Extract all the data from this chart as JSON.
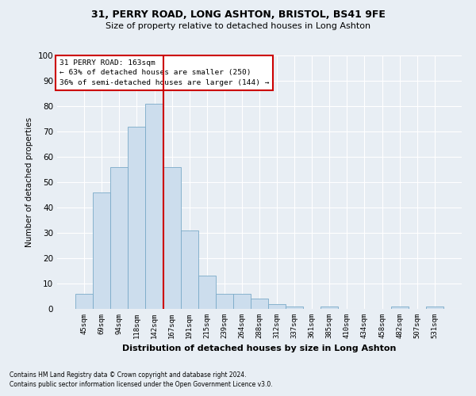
{
  "title1": "31, PERRY ROAD, LONG ASHTON, BRISTOL, BS41 9FE",
  "title2": "Size of property relative to detached houses in Long Ashton",
  "xlabel": "Distribution of detached houses by size in Long Ashton",
  "ylabel": "Number of detached properties",
  "bar_labels": [
    "45sqm",
    "69sqm",
    "94sqm",
    "118sqm",
    "142sqm",
    "167sqm",
    "191sqm",
    "215sqm",
    "239sqm",
    "264sqm",
    "288sqm",
    "312sqm",
    "337sqm",
    "361sqm",
    "385sqm",
    "410sqm",
    "434sqm",
    "458sqm",
    "482sqm",
    "507sqm",
    "531sqm"
  ],
  "bar_values": [
    6,
    46,
    56,
    72,
    81,
    56,
    31,
    13,
    6,
    6,
    4,
    2,
    1,
    0,
    1,
    0,
    0,
    0,
    1,
    0,
    1
  ],
  "bar_color": "#ccdded",
  "bar_edge_color": "#7aaac8",
  "property_line_x": 4.5,
  "annotation_text1": "31 PERRY ROAD: 163sqm",
  "annotation_text2": "← 63% of detached houses are smaller (250)",
  "annotation_text3": "36% of semi-detached houses are larger (144) →",
  "annotation_box_color": "#ffffff",
  "annotation_border_color": "#cc0000",
  "vline_color": "#cc0000",
  "footnote1": "Contains HM Land Registry data © Crown copyright and database right 2024.",
  "footnote2": "Contains public sector information licensed under the Open Government Licence v3.0.",
  "ylim": [
    0,
    100
  ],
  "background_color": "#e8eef4",
  "grid_color": "#ffffff"
}
